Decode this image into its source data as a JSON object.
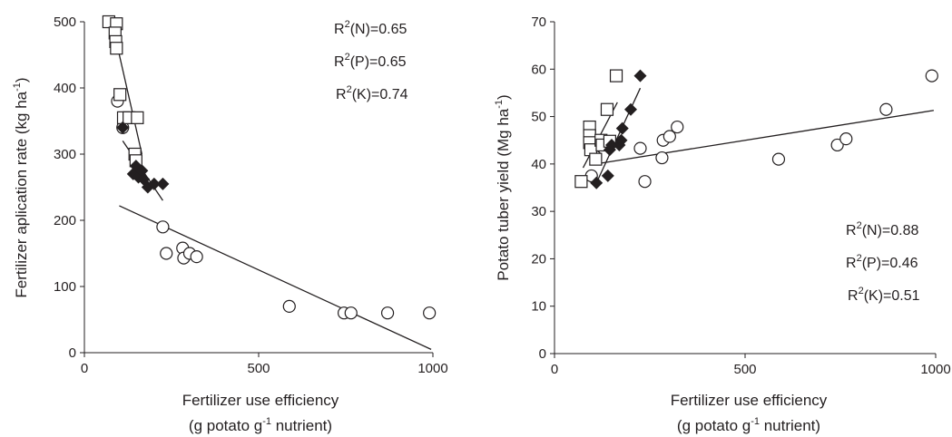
{
  "chart_data": [
    {
      "type": "scatter",
      "xlabel_line1": "Fertilizer use efficiency",
      "xlabel_line2_pre": "(g potato g",
      "xlabel_line2_sup": "-1",
      "xlabel_line2_post": " nutrient)",
      "ylabel_pre": "Fertilizer aplication rate (kg ha",
      "ylabel_sup": "-1",
      "ylabel_post": ")",
      "xlim": [
        0,
        1000
      ],
      "ylim": [
        0,
        500
      ],
      "xticks": [
        "0",
        "500",
        "1000"
      ],
      "yticks": [
        "0",
        "100",
        "200",
        "300",
        "400",
        "500"
      ],
      "grid": false,
      "series": [
        {
          "marker": "circle",
          "points": [
            [
              95,
              380
            ],
            [
              110,
              340
            ],
            [
              225,
              190
            ],
            [
              235,
              150
            ],
            [
              282,
              158
            ],
            [
              285,
              143
            ],
            [
              302,
              150
            ],
            [
              322,
              145
            ],
            [
              588,
              70
            ],
            [
              745,
              60
            ],
            [
              765,
              60
            ],
            [
              870,
              60
            ],
            [
              990,
              60
            ]
          ],
          "trend": [
            [
              100,
              222
            ],
            [
              995,
              5
            ]
          ]
        },
        {
          "marker": "square",
          "points": [
            [
              70,
              500
            ],
            [
              92,
              497
            ],
            [
              88,
              483
            ],
            [
              90,
              470
            ],
            [
              92,
              460
            ],
            [
              102,
              390
            ],
            [
              112,
              355
            ],
            [
              128,
              355
            ],
            [
              152,
              355
            ],
            [
              145,
              300
            ],
            [
              148,
              290
            ]
          ],
          "trend": [
            [
              80,
              497
            ],
            [
              165,
              300
            ]
          ]
        },
        {
          "marker": "diamond",
          "points": [
            [
              110,
              340
            ],
            [
              140,
              270
            ],
            [
              148,
              282
            ],
            [
              155,
              265
            ],
            [
              165,
              275
            ],
            [
              170,
              262
            ],
            [
              182,
              250
            ],
            [
              200,
              255
            ],
            [
              225,
              255
            ]
          ],
          "trend": [
            [
              110,
              320
            ],
            [
              225,
              230
            ]
          ]
        }
      ],
      "annotations": [
        {
          "pre": "R",
          "sup": "2",
          "post": "(N)=0.65"
        },
        {
          "pre": "R",
          "sup": "2",
          "post": "(P)=0.65"
        },
        {
          "pre": "R",
          "sup": "2",
          "post": "(K)=0.74"
        }
      ]
    },
    {
      "type": "scatter",
      "xlabel_line1": "Fertilizer use efficiency",
      "xlabel_line2_pre": "(g potato g",
      "xlabel_line2_sup": "-1",
      "xlabel_line2_post": " nutrient)",
      "ylabel_pre": "Potato tuber yield (Mg  ha",
      "ylabel_sup": "-1",
      "ylabel_post": ")",
      "xlim": [
        0,
        1000
      ],
      "ylim": [
        0,
        70
      ],
      "xticks": [
        "0",
        "500",
        "1000"
      ],
      "yticks": [
        "0",
        "10",
        "20",
        "30",
        "40",
        "50",
        "60",
        "70"
      ],
      "grid": false,
      "series": [
        {
          "marker": "circle",
          "points": [
            [
              97,
              37.5
            ],
            [
              108,
              41.5
            ],
            [
              225,
              43.3
            ],
            [
              237,
              36.3
            ],
            [
              282,
              41.3
            ],
            [
              285,
              45.0
            ],
            [
              302,
              45.8
            ],
            [
              322,
              47.8
            ],
            [
              588,
              41.0
            ],
            [
              742,
              44.0
            ],
            [
              765,
              45.3
            ],
            [
              870,
              51.5
            ],
            [
              990,
              58.6
            ]
          ],
          "trend": [
            [
              108,
              40.0
            ],
            [
              995,
              51.3
            ]
          ]
        },
        {
          "marker": "square",
          "points": [
            [
              70,
              36.3
            ],
            [
              92,
              47.8
            ],
            [
              92,
              46.0
            ],
            [
              92,
              44.5
            ],
            [
              95,
              43.0
            ],
            [
              108,
              41.0
            ],
            [
              122,
              45.0
            ],
            [
              125,
              44.0
            ],
            [
              138,
              51.5
            ],
            [
              145,
              44.8
            ],
            [
              162,
              58.6
            ]
          ],
          "trend": [
            [
              75,
              39.2
            ],
            [
              165,
              53.0
            ]
          ]
        },
        {
          "marker": "diamond",
          "points": [
            [
              110,
              36.0
            ],
            [
              140,
              37.5
            ],
            [
              145,
              43.0
            ],
            [
              150,
              44.0
            ],
            [
              170,
              44.0
            ],
            [
              175,
              45.0
            ],
            [
              178,
              47.5
            ],
            [
              200,
              51.5
            ],
            [
              225,
              58.6
            ]
          ],
          "trend": [
            [
              110,
              36.0
            ],
            [
              225,
              56.0
            ]
          ]
        }
      ],
      "annotations": [
        {
          "pre": "R",
          "sup": "2",
          "post": "(N)=0.88"
        },
        {
          "pre": "R",
          "sup": "2",
          "post": "(P)=0.46"
        },
        {
          "pre": "R",
          "sup": "2",
          "post": "(K)=0.51"
        }
      ]
    }
  ]
}
